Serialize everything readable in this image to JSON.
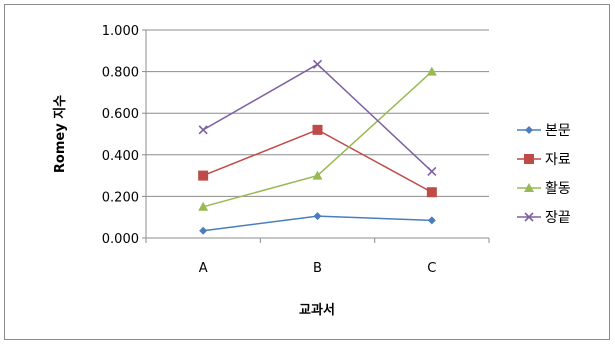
{
  "chart_data": {
    "type": "line",
    "title": "",
    "xlabel": "교과서",
    "ylabel": "Romey 지수",
    "categories": [
      "A",
      "B",
      "C"
    ],
    "ylim": [
      0,
      1
    ],
    "yticks": [
      "0.000",
      "0.200",
      "0.400",
      "0.600",
      "0.800",
      "1.000"
    ],
    "ytick_values": [
      0,
      0.2,
      0.4,
      0.6,
      0.8,
      1.0
    ],
    "grid": "horizontal",
    "legend_position": "right",
    "series": [
      {
        "name": "본문",
        "values": [
          0.035,
          0.105,
          0.085
        ],
        "color": "#4a7ebb",
        "marker": "diamond"
      },
      {
        "name": "자료",
        "values": [
          0.3,
          0.52,
          0.22
        ],
        "color": "#be4b48",
        "marker": "square"
      },
      {
        "name": "활동",
        "values": [
          0.15,
          0.3,
          0.8
        ],
        "color": "#98b954",
        "marker": "triangle"
      },
      {
        "name": "장끝",
        "values": [
          0.52,
          0.835,
          0.32
        ],
        "color": "#7d60a0",
        "marker": "x"
      }
    ]
  }
}
